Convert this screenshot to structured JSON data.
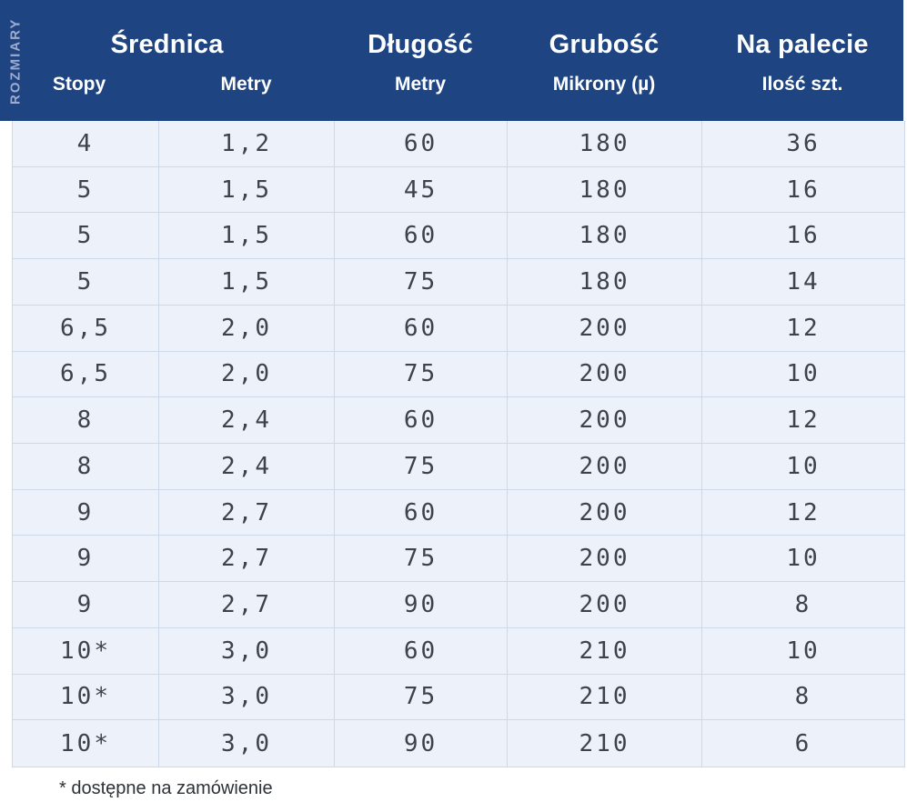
{
  "side_label": "ROZMIARY",
  "table": {
    "column_groups": [
      {
        "title": "Średnica",
        "subcolumns": [
          "Stopy",
          "Metry"
        ]
      },
      {
        "title": "Długość",
        "subcolumns": [
          "Metry"
        ]
      },
      {
        "title": "Grubość",
        "subcolumns": [
          "Mikrony (µ)"
        ]
      },
      {
        "title": "Na palecie",
        "subcolumns": [
          "Ilość szt."
        ]
      }
    ],
    "rows": [
      [
        "4",
        "1,2",
        "60",
        "180",
        "36"
      ],
      [
        "5",
        "1,5",
        "45",
        "180",
        "16"
      ],
      [
        "5",
        "1,5",
        "60",
        "180",
        "16"
      ],
      [
        "5",
        "1,5",
        "75",
        "180",
        "14"
      ],
      [
        "6,5",
        "2,0",
        "60",
        "200",
        "12"
      ],
      [
        "6,5",
        "2,0",
        "75",
        "200",
        "10"
      ],
      [
        "8",
        "2,4",
        "60",
        "200",
        "12"
      ],
      [
        "8",
        "2,4",
        "75",
        "200",
        "10"
      ],
      [
        "9",
        "2,7",
        "60",
        "200",
        "12"
      ],
      [
        "9",
        "2,7",
        "75",
        "200",
        "10"
      ],
      [
        "9",
        "2,7",
        "90",
        "200",
        "8"
      ],
      [
        "10*",
        "3,0",
        "60",
        "210",
        "10"
      ],
      [
        "10*",
        "3,0",
        "75",
        "210",
        "8"
      ],
      [
        "10*",
        "3,0",
        "90",
        "210",
        "6"
      ]
    ]
  },
  "footnote": "* dostępne na zamówienie",
  "colors": {
    "header_bg": "#1e4482",
    "header_text": "#ffffff",
    "side_label_text": "#9dacce",
    "row_bg": "#edf1f9",
    "border": "#cfd8e9",
    "cell_text": "#3e434a",
    "footnote_text": "#2d3238",
    "page_bg": "#ffffff"
  }
}
